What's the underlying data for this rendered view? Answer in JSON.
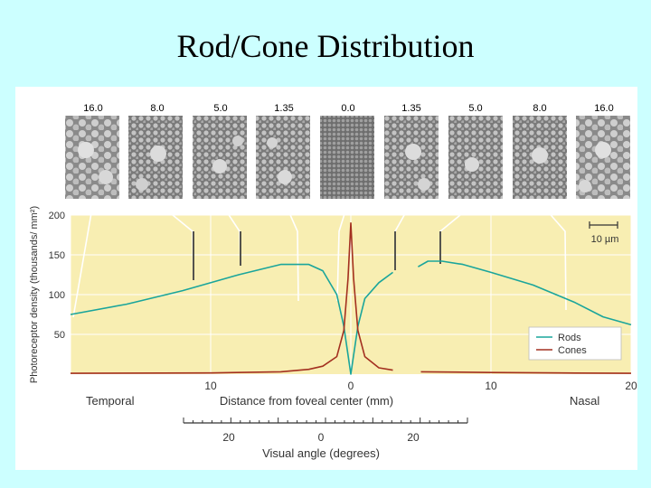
{
  "slide": {
    "title": "Rod/Cone Distribution"
  },
  "micrographs": {
    "labels": [
      "16.0",
      "8.0",
      "5.0",
      "1.35",
      "0.0",
      "1.35",
      "5.0",
      "8.0",
      "16.0"
    ]
  },
  "scale_bar": {
    "label": "10 µm"
  },
  "chart_data": {
    "type": "line",
    "ylabel": "Photoreceptor density (thousands/ mm²)",
    "xlabel": "Distance from foveal center (mm)",
    "xlabel_left": "Temporal",
    "xlabel_right": "Nasal",
    "x_tick_labels": [
      "10",
      "0",
      "10",
      "20"
    ],
    "y_tick_labels": [
      "50",
      "100",
      "150",
      "200"
    ],
    "xlim": [
      -20,
      20
    ],
    "ylim": [
      0,
      200
    ],
    "grid": true,
    "legend": "bottom-right",
    "series": [
      {
        "name": "Rods",
        "color": "#1aa59b",
        "segments": [
          [
            [
              -20,
              75
            ],
            [
              -16,
              88
            ],
            [
              -12,
              105
            ],
            [
              -8,
              125
            ],
            [
              -5,
              138
            ],
            [
              -3,
              138
            ],
            [
              -2,
              130
            ],
            [
              -1,
              100
            ],
            [
              -0.5,
              60
            ],
            [
              0,
              0
            ],
            [
              0.5,
              60
            ],
            [
              1,
              95
            ],
            [
              2,
              115
            ],
            [
              3,
              128
            ]
          ],
          [
            [
              4.8,
              135
            ],
            [
              5.5,
              142
            ],
            [
              6.5,
              142
            ],
            [
              8,
              138
            ],
            [
              10,
              128
            ],
            [
              13,
              112
            ],
            [
              16,
              90
            ],
            [
              18,
              72
            ],
            [
              20,
              62
            ]
          ]
        ]
      },
      {
        "name": "Cones",
        "color": "#a33020",
        "segments": [
          [
            [
              -20,
              1
            ],
            [
              -10,
              1.5
            ],
            [
              -5,
              3
            ],
            [
              -3,
              6
            ],
            [
              -2,
              10
            ],
            [
              -1,
              22
            ],
            [
              -0.5,
              55
            ],
            [
              -0.2,
              120
            ],
            [
              0,
              190
            ],
            [
              0.2,
              120
            ],
            [
              0.5,
              55
            ],
            [
              1,
              22
            ],
            [
              2,
              8
            ],
            [
              3,
              5
            ]
          ],
          [
            [
              5,
              3
            ],
            [
              10,
              2
            ],
            [
              15,
              1.5
            ],
            [
              20,
              1
            ]
          ]
        ]
      }
    ],
    "visual_angle_axis": {
      "label": "Visual angle (degrees)",
      "tick_labels": [
        "20",
        "0",
        "20"
      ]
    }
  }
}
